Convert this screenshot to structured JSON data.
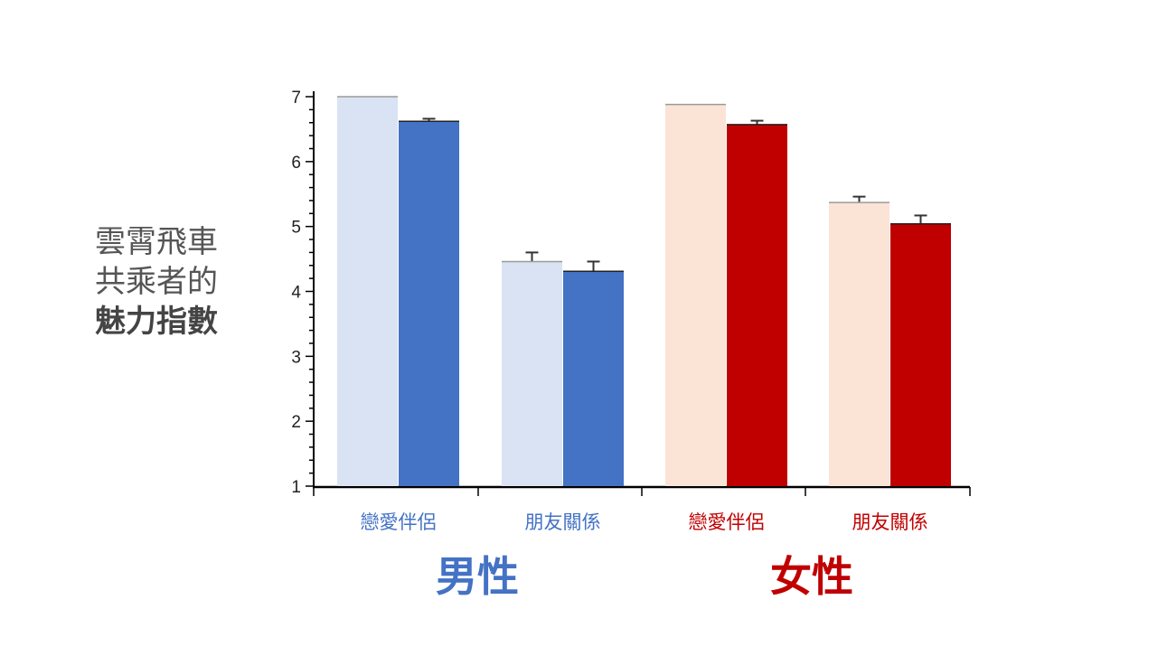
{
  "ylabel": {
    "line1": "雲霄飛車",
    "line2": "共乘者的",
    "line3": "魅力指數"
  },
  "colors": {
    "male_light": "#d9e3f3",
    "male_dark": "#4472c4",
    "female_light": "#fbe3d6",
    "female_dark": "#c00000",
    "male_text": "#4472c4",
    "female_text": "#c00000"
  },
  "chart_data": {
    "type": "bar",
    "ylim": [
      1,
      7
    ],
    "yticks": [
      "1",
      "2",
      "3",
      "4",
      "5",
      "6",
      "7"
    ],
    "groups": [
      {
        "label": "男性",
        "categories": [
          "戀愛伴侶",
          "朋友關係"
        ],
        "series": [
          {
            "values": [
              7.0,
              4.46
            ],
            "errors": [
              0.0,
              0.14
            ]
          },
          {
            "values": [
              6.62,
              4.31
            ],
            "errors": [
              0.04,
              0.15
            ]
          }
        ]
      },
      {
        "label": "女性",
        "categories": [
          "戀愛伴侶",
          "朋友關係"
        ],
        "series": [
          {
            "values": [
              6.88,
              5.37
            ],
            "errors": [
              0.0,
              0.09
            ]
          },
          {
            "values": [
              6.57,
              5.04
            ],
            "errors": [
              0.06,
              0.13
            ]
          }
        ]
      }
    ]
  }
}
